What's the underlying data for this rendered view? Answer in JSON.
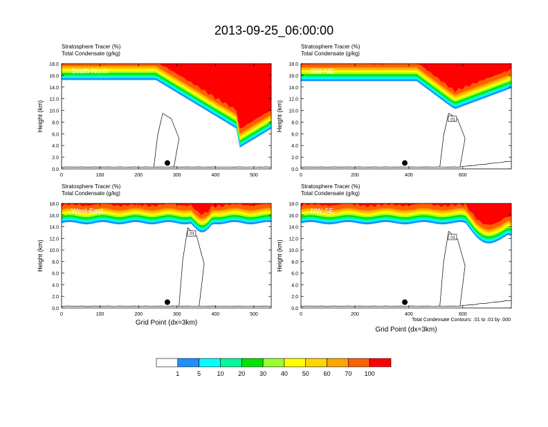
{
  "figure": {
    "title": "2013-09-25_06:00:00",
    "contour_note": "Total Condensate Contours: .01 to .01 by .000",
    "colorbar": {
      "labels": [
        "1",
        "5",
        "10",
        "20",
        "30",
        "40",
        "50",
        "60",
        "70",
        "100"
      ],
      "colors": [
        "#ffffff",
        "#1e90ff",
        "#00ffff",
        "#00fa9a",
        "#00e400",
        "#9aff32",
        "#ffff00",
        "#ffd700",
        "#ffa500",
        "#ff6000",
        "#ff0000"
      ]
    }
  },
  "chart_data": [
    {
      "type": "contour",
      "panel": "South-North",
      "header": [
        "Stratosphere Tracer   (%)",
        "Total Condensate   (g/kg)"
      ],
      "ylabel": "Height (km)",
      "xlabel": "",
      "xlim": [
        0,
        545
      ],
      "ylim": [
        0,
        18
      ],
      "xticks": [
        0,
        100,
        200,
        300,
        400,
        500
      ],
      "yticks": [
        "0.0",
        "2.0",
        "4.0",
        "6.0",
        "8.0",
        "10.0",
        "12.0",
        "14.0",
        "16.0",
        "18.0"
      ],
      "marker": {
        "x": 275,
        "y": 1.0
      },
      "contour_label": ""
    },
    {
      "type": "contour",
      "panel": "SW-NE",
      "header": [
        "Stratosphere Tracer   (%)",
        "Total Condensate   (g/kg)"
      ],
      "ylabel": "Height (km)",
      "xlabel": "",
      "xlim": [
        0,
        780
      ],
      "ylim": [
        0,
        18
      ],
      "xticks": [
        0,
        200,
        400,
        600
      ],
      "yticks": [
        "0.0",
        "2.0",
        "4.0",
        "6.0",
        "8.0",
        "10.0",
        "12.0",
        "14.0",
        "16.0",
        "18.0"
      ],
      "marker": {
        "x": 385,
        "y": 1.0
      },
      "contour_label": ".01"
    },
    {
      "type": "contour",
      "panel": "West-East",
      "header": [
        "Stratosphere Tracer   (%)",
        "Total Condensate   (g/kg)"
      ],
      "ylabel": "Height (km)",
      "xlabel": "Grid Point (dx=3km)",
      "xlim": [
        0,
        545
      ],
      "ylim": [
        0,
        18
      ],
      "xticks": [
        0,
        100,
        200,
        300,
        400,
        500
      ],
      "yticks": [
        "0.0",
        "2.0",
        "4.0",
        "6.0",
        "8.0",
        "10.0",
        "12.0",
        "14.0",
        "16.0",
        "18.0"
      ],
      "marker": {
        "x": 275,
        "y": 1.0
      },
      "contour_label": ".01"
    },
    {
      "type": "contour",
      "panel": "NW-SE",
      "header": [
        "Stratosphere Tracer   (%)",
        "Total Condensate   (g/kg)"
      ],
      "ylabel": "Height (km)",
      "xlabel": "Grid Point (dx=3km)",
      "xlim": [
        0,
        780
      ],
      "ylim": [
        0,
        18
      ],
      "xticks": [
        0,
        200,
        400,
        600
      ],
      "yticks": [
        "0.0",
        "2.0",
        "4.0",
        "6.0",
        "8.0",
        "10.0",
        "12.0",
        "14.0",
        "16.0",
        "18.0"
      ],
      "marker": {
        "x": 385,
        "y": 1.0
      },
      "contour_label": ".01"
    }
  ]
}
